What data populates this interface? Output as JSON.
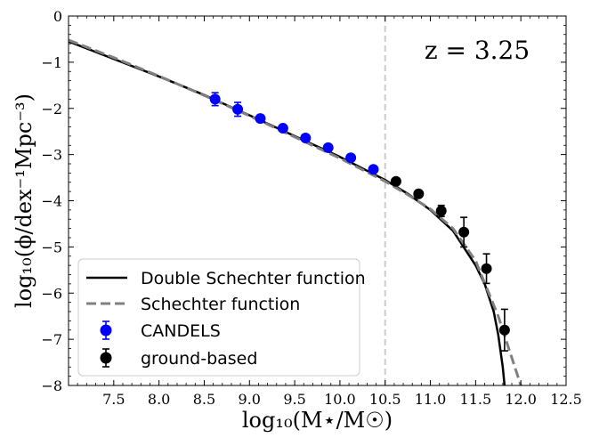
{
  "chart_data": {
    "type": "line",
    "xlabel": "log₁₀(M⋆/M☉)",
    "ylabel": "log₁₀(ϕ/dex⁻¹Mpc⁻³)",
    "xlim": [
      7.0,
      12.5
    ],
    "ylim": [
      -8,
      0
    ],
    "xticks": [
      7.5,
      8.0,
      8.5,
      9.0,
      9.5,
      10.0,
      10.5,
      11.0,
      11.5,
      12.0,
      12.5
    ],
    "yticks": [
      0,
      -1,
      -2,
      -3,
      -4,
      -5,
      -6,
      -7,
      -8
    ],
    "xtick_labels": [
      "7.5",
      "8.0",
      "8.5",
      "9.0",
      "9.5",
      "10.0",
      "10.5",
      "11.0",
      "11.5",
      "12.0",
      "12.5"
    ],
    "ytick_labels": [
      "0",
      "−1",
      "−2",
      "−3",
      "−4",
      "−5",
      "−6",
      "−7",
      "−8"
    ],
    "annotation": "z = 3.25",
    "vline_x": 10.5,
    "legend_position": "lower-left",
    "series": [
      {
        "name": "Double Schechter function",
        "style": "solid",
        "color": "#000000",
        "x": [
          7.0,
          7.5,
          8.0,
          8.5,
          9.0,
          9.5,
          10.0,
          10.5,
          10.75,
          11.0,
          11.25,
          11.5,
          11.6,
          11.7,
          11.75,
          11.8,
          11.82
        ],
        "y": [
          -0.55,
          -0.93,
          -1.31,
          -1.71,
          -2.15,
          -2.6,
          -3.05,
          -3.55,
          -3.85,
          -4.2,
          -4.65,
          -5.4,
          -5.8,
          -6.4,
          -6.9,
          -7.6,
          -8.0
        ]
      },
      {
        "name": "Schechter function",
        "style": "dashed",
        "color": "#808080",
        "x": [
          7.0,
          7.5,
          8.0,
          8.5,
          9.0,
          9.5,
          10.0,
          10.5,
          10.75,
          11.0,
          11.25,
          11.5,
          11.75,
          11.9,
          12.0
        ],
        "y": [
          -0.52,
          -0.9,
          -1.3,
          -1.72,
          -2.16,
          -2.62,
          -3.08,
          -3.58,
          -3.87,
          -4.18,
          -4.6,
          -5.3,
          -6.5,
          -7.4,
          -8.0
        ]
      },
      {
        "name": "CANDELS",
        "style": "errorbar",
        "color": "#0000ff",
        "x": [
          8.62,
          8.87,
          9.12,
          9.37,
          9.62,
          9.87,
          10.12,
          10.37
        ],
        "y": [
          -1.8,
          -2.02,
          -2.22,
          -2.43,
          -2.64,
          -2.85,
          -3.07,
          -3.32
        ],
        "yerr": [
          0.14,
          0.15,
          0.05,
          0.05,
          0.05,
          0.05,
          0.05,
          0.05
        ]
      },
      {
        "name": "ground-based",
        "style": "errorbar",
        "color": "#000000",
        "x": [
          10.62,
          10.87,
          11.12,
          11.37,
          11.62,
          11.82
        ],
        "y": [
          -3.58,
          -3.85,
          -4.22,
          -4.68,
          -5.47,
          -6.8
        ],
        "yerr": [
          0.05,
          0.05,
          0.12,
          0.32,
          0.32,
          0.45
        ]
      }
    ]
  }
}
